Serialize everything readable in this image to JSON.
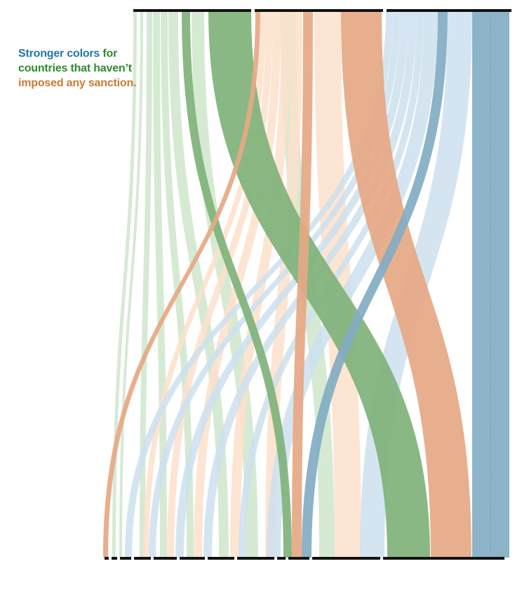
{
  "note": {
    "parts": [
      {
        "text": "Stronger colors",
        "color": "#1f78a6"
      },
      {
        "text": " for countries that haven’t",
        "color": "#2e8b2e"
      },
      {
        "text": " imposed any sanction.",
        "color": "#cc7a33"
      }
    ]
  },
  "colors": {
    "green": "#7fb27a",
    "green_light": "#cfe6cb",
    "orange": "#e6a884",
    "orange_light": "#fde0cb",
    "blue": "#82adc2",
    "blue_light": "#cce0ee",
    "bar": "#111111"
  },
  "chart_data": {
    "type": "sankey",
    "top_groups": [
      {
        "key": "green",
        "width": 168
      },
      {
        "key": "orange",
        "width": 183
      },
      {
        "key": "blue",
        "width": 178
      }
    ],
    "bottom_groups": [
      {
        "width": 6
      },
      {
        "width": 8
      },
      {
        "width": 16
      },
      {
        "width": 24
      },
      {
        "width": 33
      },
      {
        "width": 36
      },
      {
        "width": 38
      },
      {
        "width": 53
      },
      {
        "width": 12
      },
      {
        "width": 30
      },
      {
        "width": 97
      },
      {
        "width": 173
      }
    ],
    "flows": [
      {
        "group": "green",
        "strong": false,
        "top": 190,
        "bottom": 160,
        "w": 5
      },
      {
        "group": "green",
        "strong": false,
        "top": 200,
        "bottom": 170,
        "w": 4
      },
      {
        "group": "green",
        "strong": false,
        "top": 209,
        "bottom": 199,
        "w": 8
      },
      {
        "group": "green",
        "strong": false,
        "top": 218,
        "bottom": 228,
        "w": 10
      },
      {
        "group": "green",
        "strong": false,
        "top": 229,
        "bottom": 266,
        "w": 10
      },
      {
        "group": "green",
        "strong": false,
        "top": 240,
        "bottom": 312,
        "w": 14
      },
      {
        "group": "green",
        "strong": true,
        "top": 259,
        "bottom": 404,
        "w": 12
      },
      {
        "group": "green",
        "strong": false,
        "top": 273,
        "bottom": 350,
        "w": 18
      },
      {
        "group": "green",
        "strong": false,
        "top": 400,
        "bottom": 455,
        "w": 22
      },
      {
        "group": "green",
        "strong": true,
        "top": 297,
        "bottom": 552,
        "w": 61
      },
      {
        "group": "orange",
        "strong": true,
        "top": 364,
        "bottom": 147,
        "w": 7
      },
      {
        "group": "orange",
        "strong": false,
        "top": 371,
        "bottom": 204,
        "w": 8
      },
      {
        "group": "orange",
        "strong": false,
        "top": 379,
        "bottom": 238,
        "w": 10
      },
      {
        "group": "orange",
        "strong": false,
        "top": 389,
        "bottom": 276,
        "w": 12
      },
      {
        "group": "orange",
        "strong": false,
        "top": 401,
        "bottom": 328,
        "w": 14
      },
      {
        "group": "orange",
        "strong": false,
        "top": 415,
        "bottom": 378,
        "w": 16
      },
      {
        "group": "orange",
        "strong": true,
        "top": 432,
        "bottom": 416,
        "w": 14
      },
      {
        "group": "orange",
        "strong": false,
        "top": 448,
        "bottom": 477,
        "w": 38
      },
      {
        "group": "orange",
        "strong": true,
        "top": 486,
        "bottom": 614,
        "w": 58
      },
      {
        "group": "blue",
        "strong": false,
        "top": 550,
        "bottom": 178,
        "w": 10
      },
      {
        "group": "blue",
        "strong": false,
        "top": 560,
        "bottom": 212,
        "w": 10
      },
      {
        "group": "blue",
        "strong": false,
        "top": 570,
        "bottom": 250,
        "w": 12
      },
      {
        "group": "blue",
        "strong": false,
        "top": 582,
        "bottom": 290,
        "w": 12
      },
      {
        "group": "blue",
        "strong": false,
        "top": 594,
        "bottom": 340,
        "w": 10
      },
      {
        "group": "blue",
        "strong": false,
        "top": 604,
        "bottom": 380,
        "w": 20
      },
      {
        "group": "blue",
        "strong": true,
        "top": 624,
        "bottom": 430,
        "w": 14
      },
      {
        "group": "blue",
        "strong": false,
        "top": 638,
        "bottom": 513,
        "w": 35
      },
      {
        "group": "blue",
        "strong": true,
        "top": 673,
        "bottom": 673,
        "w": 53
      }
    ]
  }
}
